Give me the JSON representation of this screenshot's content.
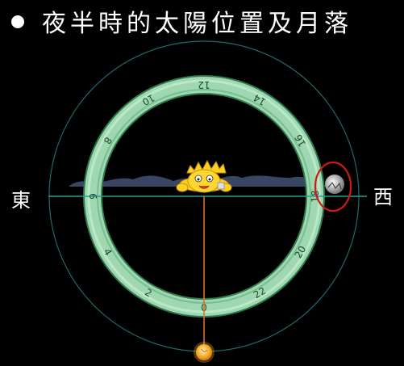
{
  "title": "夜半時的太陽位置及月落",
  "directions": {
    "east": "東",
    "west": "西"
  },
  "clock_hours": [
    "0",
    "2",
    "4",
    "6",
    "8",
    "10",
    "12",
    "14",
    "16",
    "18",
    "20",
    "22"
  ],
  "colors": {
    "background": "#000000",
    "ring": "#9fd8b0",
    "ring_edge": "#2f7a4d",
    "horizon_line": "#2a9c9c",
    "outer_circle": "#1f6b6b",
    "mountains": "#3e4e6e",
    "plumb_line": "#d9722a",
    "sun": "#f1a020",
    "moon_highlight_circle": "#d01818"
  },
  "icons": {
    "sun_below": "sun-icon",
    "observer": "cartoon-observer-icon",
    "moon": "moon-icon"
  }
}
